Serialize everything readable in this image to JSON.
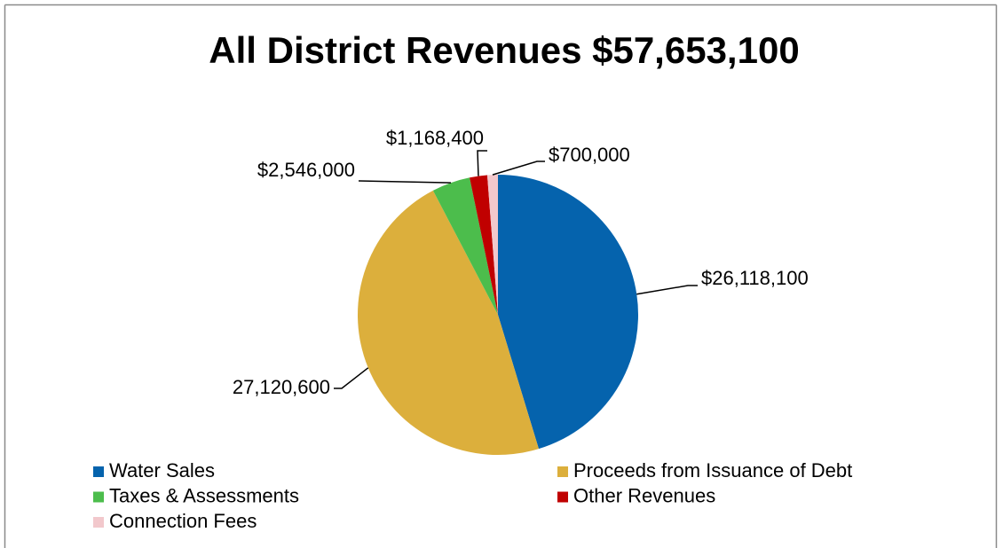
{
  "chart_data": {
    "type": "pie",
    "title": "All District Revenues $57,653,100",
    "categories": [
      "Water Sales",
      "Proceeds from Issuance of Debt",
      "Taxes & Assessments",
      "Other Revenues",
      "Connection Fees"
    ],
    "values": [
      26118100,
      27120600,
      2546000,
      1168400,
      700000
    ],
    "value_labels": [
      "$26,118,100",
      "27,120,600",
      "$2,546,000",
      "$1,168,400",
      "$700,000"
    ],
    "colors": [
      "#0563ad",
      "#dcaf3c",
      "#4cbd4c",
      "#c00000",
      "#f2c8cc"
    ]
  }
}
